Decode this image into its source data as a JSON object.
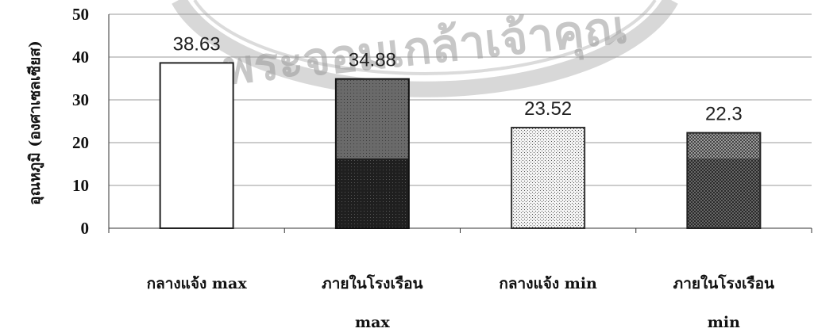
{
  "chart_data": {
    "type": "bar",
    "categories": [
      [
        "กลางแจ้ง max"
      ],
      [
        "ภายในโรงเรือน",
        "max"
      ],
      [
        "กลางแจ้ง min"
      ],
      [
        "ภายในโรงเรือน",
        "min"
      ]
    ],
    "values": [
      38.63,
      34.88,
      23.52,
      22.3
    ],
    "data_labels": [
      "38.63",
      "34.88",
      "23.52",
      "22.3"
    ],
    "ylabel": "อุณหภูมิ (องศาเซลเซียส)",
    "xlabel": "",
    "ylim": [
      0,
      50
    ],
    "yticks": [
      0,
      10,
      20,
      30,
      40,
      50
    ],
    "grid": "horizontal",
    "bar_styles": [
      "white",
      "dark-gray",
      "light-dotted",
      "cross-hatch"
    ]
  },
  "watermark": {
    "text": "พระจอมเกล้าเจ้าคุณ"
  }
}
